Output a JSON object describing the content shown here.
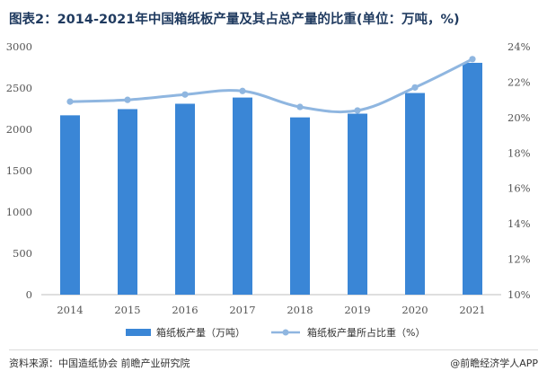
{
  "title": "图表2：2014-2021年中国箱纸板产量及其占总产量的比重(单位：万吨，%)",
  "footer": {
    "source": "资料来源：中国造纸协会 前瞻产业研究院",
    "brand": "@前瞻经济学人APP"
  },
  "colors": {
    "bar": "#3a86d6",
    "line": "#8fb6e0"
  },
  "chart_data": {
    "type": "bar+line",
    "categories": [
      "2014",
      "2015",
      "2016",
      "2017",
      "2018",
      "2019",
      "2020",
      "2021"
    ],
    "series": [
      {
        "name": "箱纸板产量（万吨）",
        "type": "bar",
        "axis": "left",
        "values": [
          2170,
          2245,
          2310,
          2385,
          2145,
          2190,
          2440,
          2805
        ]
      },
      {
        "name": "箱纸板产量所占比重（%）",
        "type": "line",
        "axis": "right",
        "values": [
          20.9,
          21.0,
          21.3,
          21.5,
          20.6,
          20.4,
          21.7,
          23.3
        ]
      }
    ],
    "y_left": {
      "min": 0,
      "max": 3000,
      "ticks": [
        "0",
        "500",
        "1000",
        "1500",
        "2000",
        "2500",
        "3000"
      ]
    },
    "y_right": {
      "min": 10,
      "max": 24,
      "ticks": [
        "10%",
        "12%",
        "14%",
        "16%",
        "18%",
        "20%",
        "22%",
        "24%"
      ]
    },
    "grid": false,
    "legend": "bottom"
  }
}
